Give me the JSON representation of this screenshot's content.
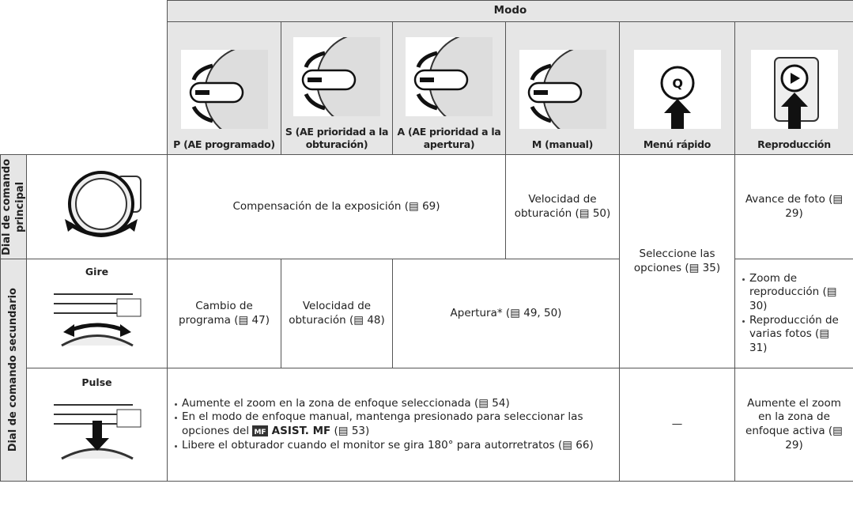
{
  "header": {
    "mode": "Modo",
    "columns": [
      "P (AE programado)",
      "S (AE prioridad a la obturación)",
      "A (AE prioridad a la apertura)",
      "M (manual)",
      "Menú rápido",
      "Reproducción"
    ]
  },
  "main_dial": {
    "label": "Dial de comando principal",
    "exposure": "Compensación de la exposición (▤ 69)",
    "shutter": "Velocidad de obturación (▤ 50)",
    "playback": "Avance de foto (▤ 29)"
  },
  "quick_menu": "Seleccione las opciones (▤ 35)",
  "sub_dial": {
    "label": "Dial de comando secundario",
    "rotate": {
      "action": "Gire",
      "program": "Cambio de programa (▤ 47)",
      "shutter": "Velocidad de obturación (▤ 48)",
      "aperture": "Apertura* (▤ 49, 50)",
      "playback": [
        "Zoom de reproducción (▤ 30)",
        "Reproducción de varias fotos (▤ 31)"
      ]
    },
    "press": {
      "action": "Pulse",
      "items": [
        {
          "text": "Aumente el zoom en la zona de enfoque seleccionada (▤ 54)"
        },
        {
          "text": "En el modo de enfoque manual, mantenga presionado para seleccionar las opciones del",
          "icon": "MF",
          "bold": "ASIST. MF",
          "ref": "(▤ 53)"
        },
        {
          "text": "Libere el obturador cuando el monitor se gira 180° para autorretratos (▤ 66)"
        }
      ],
      "quick_menu": "—",
      "playback": "Aumente el zoom en la zona de enfoque activa (▤ 29)"
    }
  }
}
